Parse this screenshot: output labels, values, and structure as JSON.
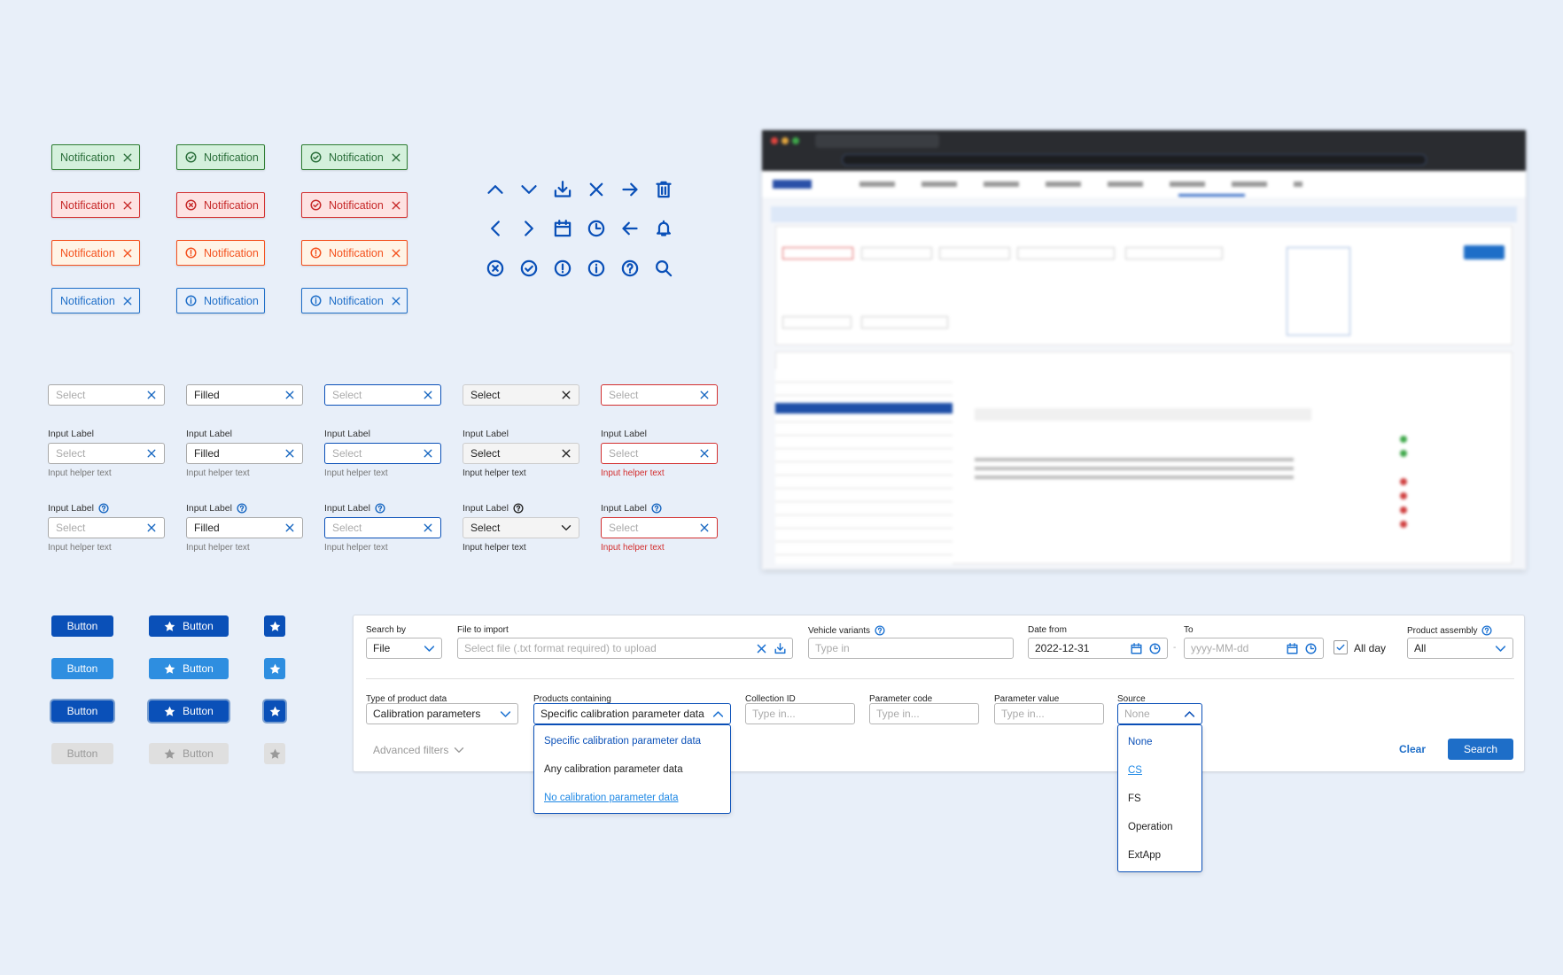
{
  "colors": {
    "page_bg": "#e8eff9",
    "primary": "#0a50b8",
    "secondary": "#2e8ee0",
    "success": "#2e7d32",
    "error": "#d32f2f",
    "warning": "#f4511e",
    "info": "#1e6ec8"
  },
  "notifications": {
    "rows": [
      {
        "variant": "success",
        "status_icon": "check-circle-icon",
        "label": "Notification"
      },
      {
        "variant": "error",
        "status_icon": "x-circle-icon",
        "alt_icon": "check-circle-icon",
        "label": "Notification"
      },
      {
        "variant": "warning",
        "status_icon": "exclamation-circle-icon",
        "label": "Notification"
      },
      {
        "variant": "info",
        "status_icon": "info-circle-icon",
        "label": "Notification"
      }
    ]
  },
  "icon_set": [
    [
      "chevron-up-icon",
      "chevron-down-icon",
      "download-icon",
      "close-icon",
      "arrow-right-icon",
      "trash-icon"
    ],
    [
      "chevron-left-icon",
      "chevron-right-icon",
      "calendar-icon",
      "clock-icon",
      "arrow-left-icon",
      "bell-icon"
    ],
    [
      "x-circle-icon",
      "check-circle-icon",
      "exclamation-circle-icon",
      "info-circle-icon",
      "help-circle-icon",
      "search-icon"
    ]
  ],
  "inputs": {
    "label": "Input Label",
    "helper": "Input helper text",
    "columns": [
      {
        "state": "default",
        "value": "",
        "placeholder": "Select"
      },
      {
        "state": "filled",
        "value": "Filled",
        "placeholder": ""
      },
      {
        "state": "focus",
        "value": "",
        "placeholder": "Select"
      },
      {
        "state": "disabled",
        "value": "Select",
        "placeholder": ""
      },
      {
        "state": "error",
        "value": "",
        "placeholder": "Select"
      }
    ]
  },
  "buttons": {
    "label": "Button",
    "icon": "star-icon",
    "states": [
      "primary",
      "secondary",
      "focus",
      "disabled"
    ]
  },
  "search_panel": {
    "search_by": {
      "label": "Search by",
      "value": "File"
    },
    "file_to_import": {
      "label": "File to import",
      "placeholder": "Select file (.txt format required) to upload"
    },
    "vehicle_variants": {
      "label": "Vehicle variants",
      "placeholder": "Type in"
    },
    "date_from": {
      "label": "Date from",
      "value": "2022-12-31"
    },
    "date_separator": "-",
    "date_to": {
      "label": "To",
      "placeholder": "yyyy-MM-dd"
    },
    "all_day": {
      "label": "All day",
      "checked": true
    },
    "product_assembly": {
      "label": "Product assembly",
      "value": "All"
    },
    "type_of_product_data": {
      "label": "Type of product data",
      "value": "Calibration parameters"
    },
    "products_containing": {
      "label": "Products containing",
      "value": "Specific calibration parameter data",
      "options": [
        "Specific calibration parameter data",
        "Any calibration parameter data",
        "No calibration parameter data"
      ]
    },
    "collection_id": {
      "label": "Collection ID",
      "placeholder": "Type in..."
    },
    "parameter_code": {
      "label": "Parameter code",
      "placeholder": "Type in..."
    },
    "parameter_value": {
      "label": "Parameter value",
      "placeholder": "Type in..."
    },
    "source": {
      "label": "Source",
      "placeholder": "None",
      "options": [
        "None",
        "CS",
        "FS",
        "Operation",
        "ExtApp"
      ]
    },
    "advanced_filters": "Advanced filters",
    "clear": "Clear",
    "search": "Search"
  }
}
